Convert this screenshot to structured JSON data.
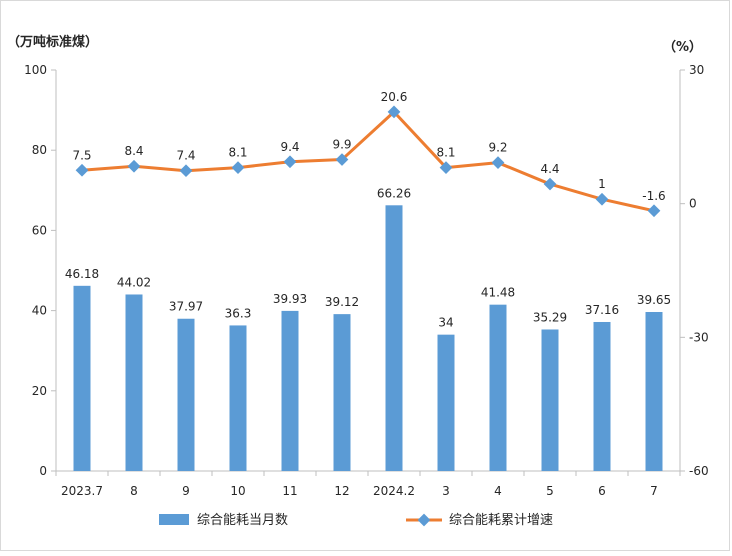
{
  "chart_data": {
    "type": "bar",
    "categories": [
      "2023.7",
      "8",
      "9",
      "10",
      "11",
      "12",
      "2024.2",
      "3",
      "4",
      "5",
      "6",
      "7"
    ],
    "series": [
      {
        "name": "综合能耗当月数",
        "type": "bar",
        "axis": "left",
        "color": "#5b9bd5",
        "values": [
          46.18,
          44.02,
          37.97,
          36.3,
          39.93,
          39.12,
          66.26,
          34,
          41.48,
          35.29,
          37.16,
          39.65
        ],
        "labels": [
          "46.18",
          "44.02",
          "37.97",
          "36.3",
          "39.93",
          "39.12",
          "66.26",
          "34",
          "41.48",
          "35.29",
          "37.16",
          "39.65"
        ]
      },
      {
        "name": "综合能耗累计增速",
        "type": "line",
        "axis": "right",
        "color": "#ed7d31",
        "marker_color": "#5b9bd5",
        "values": [
          7.5,
          8.4,
          7.4,
          8.1,
          9.4,
          9.9,
          20.6,
          8.1,
          9.2,
          4.4,
          1,
          -1.6
        ],
        "labels": [
          "7.5",
          "8.4",
          "7.4",
          "8.1",
          "9.4",
          "9.9",
          "20.6",
          "8.1",
          "9.2",
          "4.4",
          "1",
          "-1.6"
        ]
      }
    ],
    "left_unit": "（万吨标准煤）",
    "right_unit": "（%）",
    "ylim_left": [
      0,
      100
    ],
    "yticks_left": [
      0,
      20,
      40,
      60,
      80,
      100
    ],
    "ylim_right": [
      -60,
      30
    ],
    "yticks_right": [
      -60,
      -30,
      0,
      30
    ],
    "grid": false,
    "legend_position": "bottom"
  }
}
